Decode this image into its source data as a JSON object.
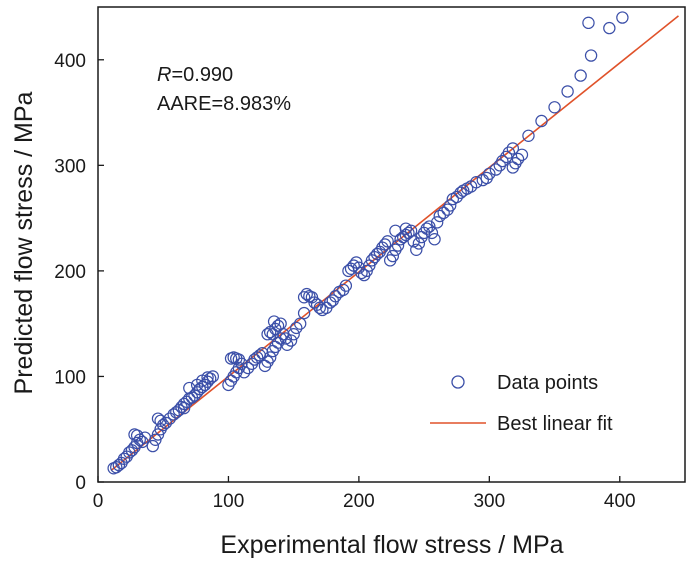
{
  "chart_data": {
    "type": "scatter",
    "xlabel": "Experimental flow stress / MPa",
    "ylabel": "Predicted flow stress / MPa",
    "xlim": [
      0,
      450
    ],
    "ylim": [
      0,
      450
    ],
    "xticks": [
      0,
      100,
      200,
      300,
      400
    ],
    "yticks": [
      0,
      100,
      200,
      300,
      400
    ],
    "grid": false,
    "legend_position": "bottom-right",
    "annotations": {
      "r_symbol": "R",
      "r_value": "=0.990",
      "aare": "AARE=8.983%"
    },
    "colors": {
      "points": "#3b4fa8",
      "fit_line": "#e0522a",
      "axis": "#1a1a1a"
    },
    "series": [
      {
        "name": "Data points",
        "kind": "scatter",
        "points": [
          [
            12,
            13
          ],
          [
            14,
            14
          ],
          [
            16,
            16
          ],
          [
            18,
            18
          ],
          [
            20,
            22
          ],
          [
            22,
            24
          ],
          [
            24,
            28
          ],
          [
            26,
            30
          ],
          [
            28,
            33
          ],
          [
            30,
            37
          ],
          [
            32,
            40
          ],
          [
            34,
            38
          ],
          [
            36,
            42
          ],
          [
            28,
            45
          ],
          [
            30,
            44
          ],
          [
            42,
            34
          ],
          [
            44,
            40
          ],
          [
            46,
            45
          ],
          [
            48,
            50
          ],
          [
            50,
            54
          ],
          [
            46,
            60
          ],
          [
            48,
            58
          ],
          [
            52,
            56
          ],
          [
            55,
            60
          ],
          [
            58,
            64
          ],
          [
            60,
            66
          ],
          [
            62,
            68
          ],
          [
            64,
            71
          ],
          [
            66,
            74
          ],
          [
            68,
            76
          ],
          [
            70,
            79
          ],
          [
            72,
            80
          ],
          [
            74,
            82
          ],
          [
            76,
            85
          ],
          [
            78,
            88
          ],
          [
            80,
            90
          ],
          [
            82,
            92
          ],
          [
            84,
            95
          ],
          [
            86,
            98
          ],
          [
            88,
            100
          ],
          [
            70,
            89
          ],
          [
            76,
            92
          ],
          [
            80,
            96
          ],
          [
            84,
            99
          ],
          [
            66,
            70
          ],
          [
            100,
            92
          ],
          [
            102,
            96
          ],
          [
            104,
            100
          ],
          [
            106,
            104
          ],
          [
            108,
            108
          ],
          [
            110,
            112
          ],
          [
            102,
            117
          ],
          [
            104,
            118
          ],
          [
            106,
            117
          ],
          [
            108,
            116
          ],
          [
            112,
            104
          ],
          [
            115,
            108
          ],
          [
            118,
            112
          ],
          [
            120,
            116
          ],
          [
            122,
            118
          ],
          [
            124,
            120
          ],
          [
            126,
            122
          ],
          [
            128,
            110
          ],
          [
            130,
            114
          ],
          [
            132,
            118
          ],
          [
            134,
            124
          ],
          [
            136,
            128
          ],
          [
            138,
            132
          ],
          [
            140,
            136
          ],
          [
            142,
            140
          ],
          [
            144,
            136
          ],
          [
            130,
            140
          ],
          [
            132,
            142
          ],
          [
            134,
            140
          ],
          [
            136,
            145
          ],
          [
            138,
            148
          ],
          [
            140,
            150
          ],
          [
            135,
            152
          ],
          [
            145,
            130
          ],
          [
            148,
            134
          ],
          [
            150,
            140
          ],
          [
            152,
            146
          ],
          [
            155,
            150
          ],
          [
            158,
            160
          ],
          [
            158,
            175
          ],
          [
            160,
            178
          ],
          [
            162,
            176
          ],
          [
            164,
            175
          ],
          [
            166,
            170
          ],
          [
            168,
            168
          ],
          [
            170,
            165
          ],
          [
            172,
            163
          ],
          [
            175,
            165
          ],
          [
            178,
            170
          ],
          [
            180,
            172
          ],
          [
            182,
            176
          ],
          [
            185,
            180
          ],
          [
            188,
            182
          ],
          [
            190,
            186
          ],
          [
            192,
            200
          ],
          [
            194,
            202
          ],
          [
            196,
            205
          ],
          [
            198,
            208
          ],
          [
            200,
            203
          ],
          [
            202,
            198
          ],
          [
            204,
            196
          ],
          [
            206,
            200
          ],
          [
            208,
            205
          ],
          [
            210,
            210
          ],
          [
            212,
            213
          ],
          [
            214,
            216
          ],
          [
            216,
            218
          ],
          [
            218,
            222
          ],
          [
            220,
            225
          ],
          [
            222,
            228
          ],
          [
            224,
            210
          ],
          [
            226,
            214
          ],
          [
            228,
            220
          ],
          [
            230,
            224
          ],
          [
            232,
            230
          ],
          [
            234,
            232
          ],
          [
            236,
            234
          ],
          [
            238,
            236
          ],
          [
            240,
            238
          ],
          [
            242,
            228
          ],
          [
            244,
            220
          ],
          [
            246,
            226
          ],
          [
            248,
            232
          ],
          [
            250,
            236
          ],
          [
            252,
            240
          ],
          [
            254,
            242
          ],
          [
            256,
            236
          ],
          [
            258,
            230
          ],
          [
            236,
            240
          ],
          [
            228,
            238
          ],
          [
            260,
            246
          ],
          [
            262,
            252
          ],
          [
            265,
            255
          ],
          [
            268,
            258
          ],
          [
            270,
            262
          ],
          [
            272,
            268
          ],
          [
            275,
            270
          ],
          [
            278,
            274
          ],
          [
            280,
            276
          ],
          [
            283,
            278
          ],
          [
            286,
            280
          ],
          [
            290,
            284
          ],
          [
            295,
            286
          ],
          [
            298,
            288
          ],
          [
            300,
            292
          ],
          [
            305,
            296
          ],
          [
            308,
            300
          ],
          [
            310,
            304
          ],
          [
            313,
            308
          ],
          [
            315,
            312
          ],
          [
            318,
            298
          ],
          [
            320,
            302
          ],
          [
            322,
            306
          ],
          [
            325,
            310
          ],
          [
            318,
            316
          ],
          [
            330,
            328
          ],
          [
            340,
            342
          ],
          [
            350,
            355
          ],
          [
            360,
            370
          ],
          [
            370,
            385
          ],
          [
            378,
            404
          ],
          [
            376,
            435
          ],
          [
            392,
            430
          ],
          [
            402,
            440
          ]
        ]
      },
      {
        "name": "Best linear fit",
        "kind": "line",
        "slope": 0.99,
        "intercept": 1.0,
        "x_range": [
          10,
          445
        ]
      }
    ]
  }
}
